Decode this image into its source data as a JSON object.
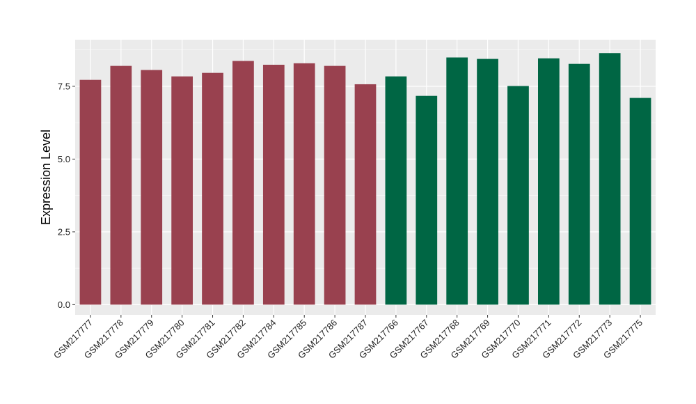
{
  "chart_data": {
    "type": "bar",
    "title": "",
    "xlabel": "",
    "ylabel": "Expression Level",
    "ylim": [
      -0.35,
      9.1
    ],
    "yticks": [
      "0.0",
      "2.5",
      "5.0",
      "7.5"
    ],
    "ytick_values": [
      0,
      2.5,
      5.0,
      7.5
    ],
    "grid": true,
    "legend": "none",
    "panel_background": "#EBEBEB",
    "grid_color": "#FFFFFF",
    "categories": [
      "GSM217777",
      "GSM217778",
      "GSM217779",
      "GSM217780",
      "GSM217781",
      "GSM217782",
      "GSM217784",
      "GSM217785",
      "GSM217786",
      "GSM217787",
      "GSM217766",
      "GSM217767",
      "GSM217768",
      "GSM217769",
      "GSM217770",
      "GSM217771",
      "GSM217772",
      "GSM217773",
      "GSM217775"
    ],
    "values": [
      7.72,
      8.2,
      8.06,
      7.84,
      7.96,
      8.37,
      8.24,
      8.29,
      8.2,
      7.57,
      7.84,
      7.17,
      8.49,
      8.44,
      7.51,
      8.46,
      8.27,
      8.64,
      7.1
    ],
    "bar_colors": [
      "#99414F",
      "#99414F",
      "#99414F",
      "#99414F",
      "#99414F",
      "#99414F",
      "#99414F",
      "#99414F",
      "#99414F",
      "#99414F",
      "#006644",
      "#006644",
      "#006644",
      "#006644",
      "#006644",
      "#006644",
      "#006644",
      "#006644",
      "#006644"
    ]
  }
}
